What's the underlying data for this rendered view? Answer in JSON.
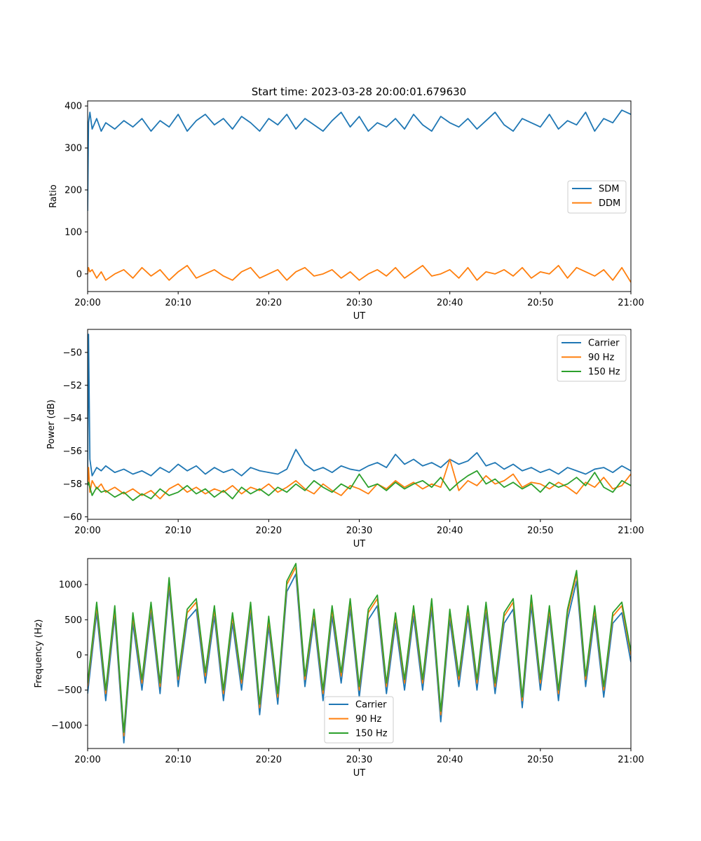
{
  "figure": {
    "title": "Start time: 2023-03-28 20:00:01.679630",
    "colors": {
      "blue": "#1f77b4",
      "orange": "#ff7f0e",
      "green": "#2ca02c"
    }
  },
  "chart_data": [
    {
      "type": "line",
      "title": "Start time: 2023-03-28 20:00:01.679630",
      "xlabel": "UT",
      "ylabel": "Ratio",
      "x_units": "minutes after 20:00 UT",
      "xlim": [
        0,
        60
      ],
      "ylim": [
        -42,
        412
      ],
      "x_ticks": [
        0,
        10,
        20,
        30,
        40,
        50,
        60
      ],
      "x_tick_labels": [
        "20:00",
        "20:10",
        "20:20",
        "20:30",
        "20:40",
        "20:50",
        "21:00"
      ],
      "y_ticks": [
        0,
        100,
        200,
        300,
        400
      ],
      "y_tick_labels": [
        "0",
        "100",
        "200",
        "300",
        "400"
      ],
      "legend": {
        "position": "center-right",
        "entries": [
          "SDM",
          "DDM"
        ]
      },
      "x": [
        0,
        0.1,
        0.25,
        0.5,
        1,
        1.5,
        2,
        3,
        4,
        5,
        6,
        7,
        8,
        9,
        10,
        11,
        12,
        13,
        14,
        15,
        16,
        17,
        18,
        19,
        20,
        21,
        22,
        23,
        24,
        25,
        26,
        27,
        28,
        29,
        30,
        31,
        32,
        33,
        34,
        35,
        36,
        37,
        38,
        39,
        40,
        41,
        42,
        43,
        44,
        45,
        46,
        47,
        48,
        49,
        50,
        51,
        52,
        53,
        54,
        55,
        56,
        57,
        58,
        59,
        60
      ],
      "series": [
        {
          "name": "SDM",
          "color": "#1f77b4",
          "values": [
            150,
            360,
            385,
            345,
            370,
            340,
            360,
            345,
            365,
            350,
            370,
            340,
            365,
            350,
            380,
            340,
            365,
            380,
            355,
            370,
            345,
            375,
            360,
            340,
            370,
            355,
            380,
            345,
            370,
            355,
            340,
            365,
            385,
            350,
            375,
            340,
            360,
            350,
            370,
            345,
            380,
            355,
            340,
            375,
            360,
            350,
            370,
            345,
            365,
            385,
            355,
            340,
            370,
            360,
            350,
            380,
            345,
            365,
            355,
            385,
            340,
            370,
            360,
            390,
            380
          ]
        },
        {
          "name": "DDM",
          "color": "#ff7f0e",
          "values": [
            0,
            15,
            5,
            10,
            -10,
            5,
            -15,
            0,
            10,
            -10,
            15,
            -5,
            10,
            -15,
            5,
            20,
            -10,
            0,
            10,
            -5,
            -15,
            5,
            15,
            -10,
            0,
            10,
            -15,
            5,
            15,
            -5,
            0,
            10,
            -10,
            5,
            -15,
            0,
            10,
            -5,
            15,
            -10,
            5,
            20,
            -5,
            0,
            10,
            -10,
            15,
            -15,
            5,
            0,
            10,
            -5,
            15,
            -10,
            5,
            0,
            20,
            -10,
            15,
            5,
            -5,
            10,
            -15,
            15,
            -20
          ]
        }
      ]
    },
    {
      "type": "line",
      "title": "",
      "xlabel": "UT",
      "ylabel": "Power (dB)",
      "x_units": "minutes after 20:00 UT",
      "xlim": [
        0,
        60
      ],
      "ylim": [
        -60.15,
        -48.6
      ],
      "x_ticks": [
        0,
        10,
        20,
        30,
        40,
        50,
        60
      ],
      "x_tick_labels": [
        "20:00",
        "20:10",
        "20:20",
        "20:30",
        "20:40",
        "20:50",
        "21:00"
      ],
      "y_ticks": [
        -60,
        -58,
        -56,
        -54,
        -52,
        -50
      ],
      "y_tick_labels": [
        "−60",
        "−58",
        "−56",
        "−54",
        "−52",
        "−50"
      ],
      "legend": {
        "position": "top-right",
        "entries": [
          "Carrier",
          "90 Hz",
          "150 Hz"
        ]
      },
      "x": [
        0,
        0.1,
        0.25,
        0.5,
        1,
        1.5,
        2,
        3,
        4,
        5,
        6,
        7,
        8,
        9,
        10,
        11,
        12,
        13,
        14,
        15,
        16,
        17,
        18,
        19,
        20,
        21,
        22,
        23,
        24,
        25,
        26,
        27,
        28,
        29,
        30,
        31,
        32,
        33,
        34,
        35,
        36,
        37,
        38,
        39,
        40,
        41,
        42,
        43,
        44,
        45,
        46,
        47,
        48,
        49,
        50,
        51,
        52,
        53,
        54,
        55,
        56,
        57,
        58,
        59,
        60
      ],
      "series": [
        {
          "name": "Carrier",
          "color": "#1f77b4",
          "values": [
            -57.5,
            -48.9,
            -56.5,
            -57.5,
            -57,
            -57.2,
            -56.9,
            -57.3,
            -57.1,
            -57.4,
            -57.2,
            -57.5,
            -57,
            -57.3,
            -56.8,
            -57.2,
            -56.9,
            -57.4,
            -57,
            -57.3,
            -57.1,
            -57.5,
            -57,
            -57.2,
            -57.3,
            -57.4,
            -57.1,
            -55.9,
            -56.8,
            -57.2,
            -57,
            -57.3,
            -56.9,
            -57.1,
            -57.2,
            -56.9,
            -56.7,
            -57,
            -56.2,
            -56.8,
            -56.5,
            -56.9,
            -56.7,
            -57,
            -56.5,
            -56.8,
            -56.6,
            -56.1,
            -56.9,
            -56.7,
            -57.1,
            -56.8,
            -57.2,
            -57,
            -57.3,
            -57.1,
            -57.4,
            -57,
            -57.2,
            -57.4,
            -57.1,
            -57,
            -57.3,
            -56.9,
            -57.2
          ]
        },
        {
          "name": "90 Hz",
          "color": "#ff7f0e",
          "values": [
            -58,
            -57,
            -58.5,
            -57.8,
            -58.3,
            -58,
            -58.5,
            -58.2,
            -58.6,
            -58.3,
            -58.7,
            -58.4,
            -58.9,
            -58.3,
            -58,
            -58.5,
            -58.2,
            -58.6,
            -58.3,
            -58.5,
            -58.1,
            -58.6,
            -58.2,
            -58.4,
            -58,
            -58.5,
            -58.2,
            -57.8,
            -58.3,
            -58.6,
            -58,
            -58.4,
            -58.7,
            -58.1,
            -58.3,
            -58.6,
            -58,
            -58.3,
            -57.8,
            -58.2,
            -57.9,
            -58.3,
            -58,
            -58.2,
            -56.5,
            -58.4,
            -57.8,
            -58.1,
            -57.5,
            -58,
            -57.8,
            -57.4,
            -58.2,
            -57.9,
            -58,
            -58.3,
            -57.9,
            -58.2,
            -58.6,
            -57.9,
            -58.2,
            -57.6,
            -58.3,
            -58.1,
            -57.4
          ]
        },
        {
          "name": "150 Hz",
          "color": "#2ca02c",
          "values": [
            -58.1,
            -57.9,
            -58.2,
            -58.7,
            -58.2,
            -58.5,
            -58.4,
            -58.8,
            -58.5,
            -59,
            -58.6,
            -58.9,
            -58.3,
            -58.7,
            -58.5,
            -58.1,
            -58.6,
            -58.3,
            -58.8,
            -58.4,
            -58.9,
            -58.2,
            -58.6,
            -58.3,
            -58.7,
            -58.2,
            -58.5,
            -58,
            -58.4,
            -57.8,
            -58.2,
            -58.5,
            -58,
            -58.3,
            -57.4,
            -58.2,
            -58,
            -58.4,
            -57.9,
            -58.3,
            -58,
            -57.8,
            -58.2,
            -57.6,
            -58.4,
            -57.9,
            -57.5,
            -57.2,
            -58,
            -57.7,
            -58.2,
            -57.9,
            -58.3,
            -58,
            -58.5,
            -57.9,
            -58.2,
            -58,
            -57.6,
            -58.1,
            -57.3,
            -58.2,
            -58.5,
            -57.8,
            -58.1
          ]
        }
      ]
    },
    {
      "type": "line",
      "title": "",
      "xlabel": "UT",
      "ylabel": "Frequency (Hz)",
      "x_units": "minutes after 20:00 UT",
      "xlim": [
        0,
        60
      ],
      "ylim": [
        -1330,
        1370
      ],
      "x_ticks": [
        0,
        10,
        20,
        30,
        40,
        50,
        60
      ],
      "x_tick_labels": [
        "20:00",
        "20:10",
        "20:20",
        "20:30",
        "20:40",
        "20:50",
        "21:00"
      ],
      "y_ticks": [
        -1000,
        -500,
        0,
        500,
        1000
      ],
      "y_tick_labels": [
        "−1000",
        "−500",
        "0",
        "500",
        "1000"
      ],
      "legend": {
        "position": "bottom-center",
        "entries": [
          "Carrier",
          "90 Hz",
          "150 Hz"
        ]
      },
      "x": [
        0,
        1,
        2,
        3,
        4,
        5,
        6,
        7,
        8,
        9,
        10,
        11,
        12,
        13,
        14,
        15,
        16,
        17,
        18,
        19,
        20,
        21,
        22,
        23,
        24,
        25,
        26,
        27,
        28,
        29,
        30,
        31,
        32,
        33,
        34,
        35,
        36,
        37,
        38,
        39,
        40,
        41,
        42,
        43,
        44,
        45,
        46,
        47,
        48,
        49,
        50,
        51,
        52,
        53,
        54,
        55,
        56,
        57,
        58,
        59,
        60
      ],
      "series": [
        {
          "name": "Carrier",
          "color": "#1f77b4",
          "values": [
            -550,
            600,
            -650,
            550,
            -1250,
            450,
            -500,
            600,
            -550,
            950,
            -450,
            500,
            650,
            -400,
            550,
            -650,
            450,
            -500,
            600,
            -850,
            400,
            -700,
            900,
            1150,
            -450,
            500,
            -650,
            550,
            -400,
            650,
            -600,
            500,
            700,
            -550,
            450,
            -500,
            550,
            -500,
            650,
            -950,
            500,
            -450,
            550,
            -500,
            600,
            -550,
            450,
            650,
            -750,
            700,
            -500,
            550,
            -650,
            500,
            1050,
            -450,
            550,
            -600,
            450,
            600,
            -100
          ]
        },
        {
          "name": "90 Hz",
          "color": "#ff7f0e",
          "values": [
            -450,
            700,
            -550,
            650,
            -1150,
            550,
            -400,
            700,
            -450,
            1050,
            -350,
            600,
            750,
            -300,
            650,
            -550,
            550,
            -400,
            700,
            -750,
            500,
            -600,
            1000,
            1250,
            -350,
            600,
            -550,
            650,
            -300,
            750,
            -500,
            600,
            800,
            -450,
            550,
            -400,
            650,
            -400,
            750,
            -850,
            600,
            -350,
            650,
            -400,
            700,
            -450,
            550,
            750,
            -650,
            800,
            -400,
            650,
            -550,
            600,
            1150,
            -350,
            650,
            -500,
            550,
            700,
            0
          ]
        },
        {
          "name": "150 Hz",
          "color": "#2ca02c",
          "values": [
            -400,
            750,
            -500,
            700,
            -1100,
            600,
            -350,
            750,
            -400,
            1100,
            -300,
            650,
            800,
            -250,
            700,
            -500,
            600,
            -350,
            750,
            -700,
            550,
            -550,
            1050,
            1300,
            -300,
            650,
            -500,
            700,
            -250,
            800,
            -450,
            650,
            850,
            -400,
            600,
            -350,
            700,
            -350,
            800,
            -800,
            650,
            -300,
            700,
            -350,
            750,
            -400,
            600,
            800,
            -600,
            850,
            -350,
            700,
            -500,
            650,
            1200,
            -300,
            700,
            -450,
            600,
            750,
            50
          ]
        }
      ]
    }
  ]
}
